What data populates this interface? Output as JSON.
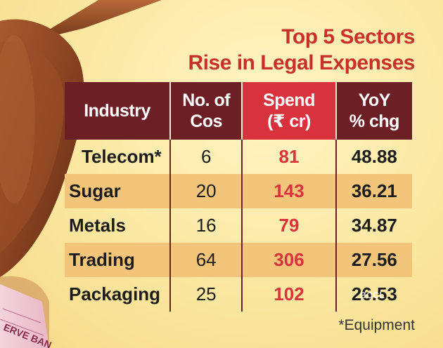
{
  "title": {
    "line1": "Top 5 Sectors",
    "line2": "Rise in Legal Expenses"
  },
  "table": {
    "headers": {
      "industry": "Industry",
      "cos_line1": "No. of",
      "cos_line2": "Cos",
      "spend_line1": "Spend",
      "spend_line2": "(₹ cr)",
      "yoy_line1": "YoY",
      "yoy_line2": "% chg"
    },
    "rows": [
      {
        "industry": "Telecom*",
        "cos": "6",
        "spend": "81",
        "yoy": "48.88"
      },
      {
        "industry": "Sugar",
        "cos": "20",
        "spend": "143",
        "yoy": "36.21"
      },
      {
        "industry": "Metals",
        "cos": "16",
        "spend": "79",
        "yoy": "34.87"
      },
      {
        "industry": "Trading",
        "cos": "64",
        "spend": "306",
        "yoy": "27.56"
      },
      {
        "industry": "Packaging",
        "cos": "25",
        "spend": "102",
        "yoy": "26.53"
      }
    ]
  },
  "footnote": "*Equipment",
  "watermark": "BCCL",
  "banknote_text": "ERVE BAN",
  "colors": {
    "header_dark": "#6d1f26",
    "header_red": "#d8323d",
    "title_red": "#c9302c",
    "row_stripe": "#f3c57a"
  }
}
